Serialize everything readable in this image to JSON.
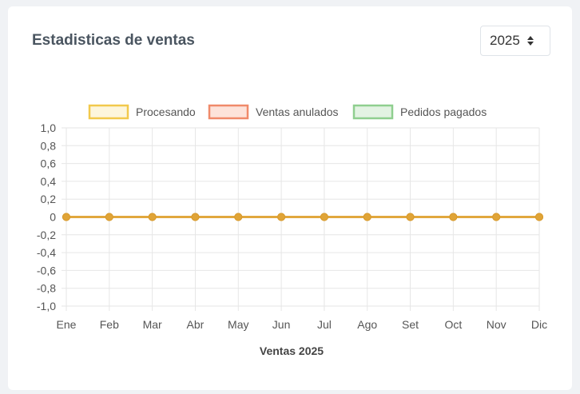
{
  "header": {
    "title": "Estadisticas de ventas",
    "year_selected": "2025"
  },
  "colors": {
    "procesando": "#f2c94c",
    "anulados": "#f08a6a",
    "pagados": "#8fcf8f",
    "line": "#e0a437"
  },
  "chart_data": {
    "type": "line",
    "title": "",
    "xlabel": "Ventas 2025",
    "ylabel": "",
    "categories": [
      "Ene",
      "Feb",
      "Mar",
      "Abr",
      "May",
      "Jun",
      "Jul",
      "Ago",
      "Set",
      "Oct",
      "Nov",
      "Dic"
    ],
    "ylim": [
      -1.0,
      1.0
    ],
    "yticks": [
      "1,0",
      "0,8",
      "0,6",
      "0,4",
      "0,2",
      "0",
      "-0,2",
      "-0,4",
      "-0,6",
      "-0,8",
      "-1,0"
    ],
    "grid": true,
    "legend_position": "top",
    "series": [
      {
        "name": "Procesando",
        "values": [
          0,
          0,
          0,
          0,
          0,
          0,
          0,
          0,
          0,
          0,
          0,
          0
        ]
      },
      {
        "name": "Ventas anulados",
        "values": [
          0,
          0,
          0,
          0,
          0,
          0,
          0,
          0,
          0,
          0,
          0,
          0
        ]
      },
      {
        "name": "Pedidos pagados",
        "values": [
          0,
          0,
          0,
          0,
          0,
          0,
          0,
          0,
          0,
          0,
          0,
          0
        ]
      }
    ]
  }
}
